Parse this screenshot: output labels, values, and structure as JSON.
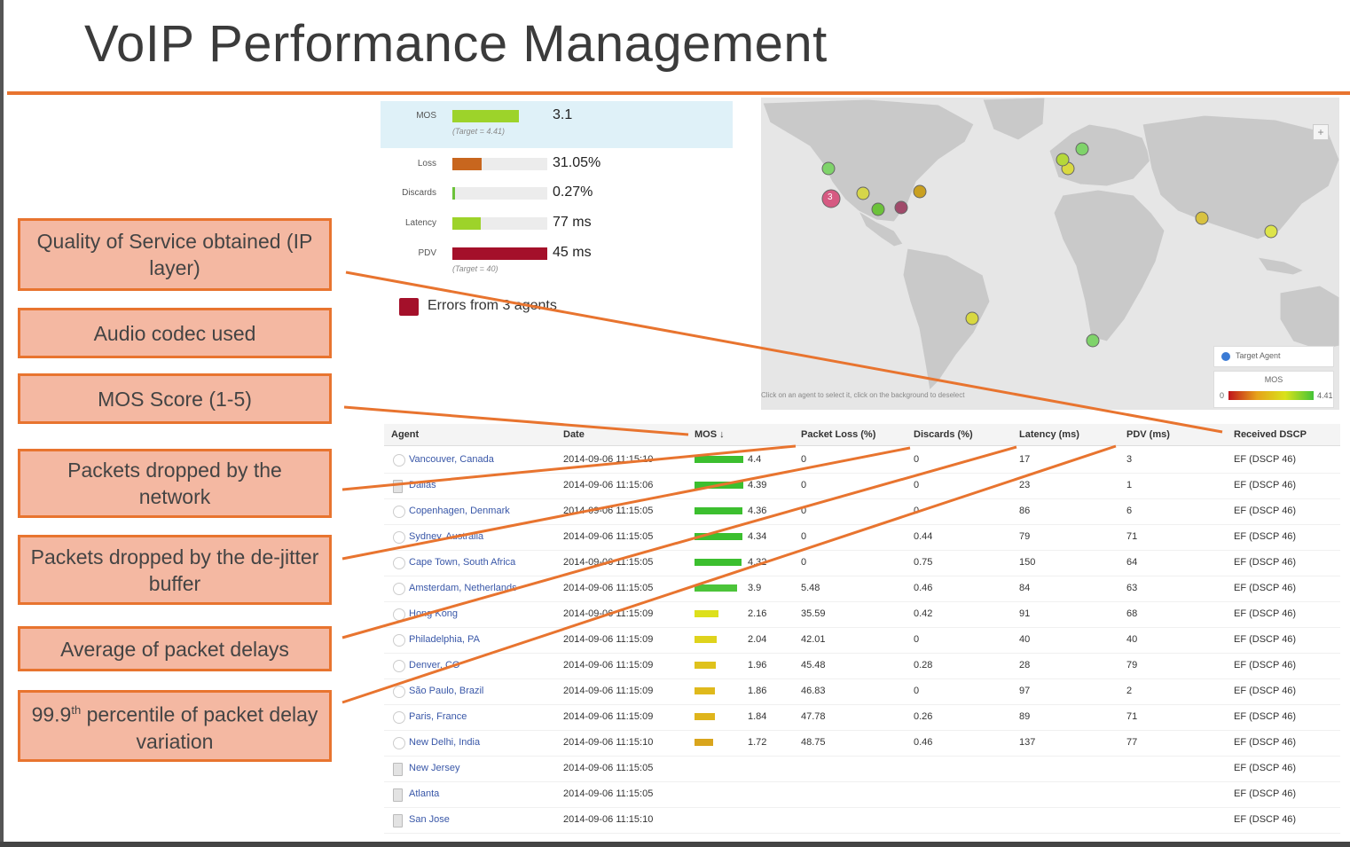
{
  "title": "VoIP Performance Management",
  "metrics": {
    "mos": {
      "label": "MOS",
      "value": "3.1",
      "target": "(Target = 4.41)",
      "fill": 0.7,
      "color": "#9dd32a"
    },
    "loss": {
      "label": "Loss",
      "value": "31.05%",
      "fill": 0.31,
      "color": "#c8661e"
    },
    "discards": {
      "label": "Discards",
      "value": "0.27%",
      "fill": 0.03,
      "color": "#6cc23a"
    },
    "latency": {
      "label": "Latency",
      "value": "77 ms",
      "fill": 0.3,
      "color": "#9dd32a"
    },
    "pdv": {
      "label": "PDV",
      "value": "45 ms",
      "target": "(Target = 40)",
      "fill": 1.0,
      "color": "#a4102a"
    },
    "errors": "Errors from 3 agents"
  },
  "map": {
    "hint": "Click on an agent to select it, click on the background to deselect",
    "legend_target": "Target Agent",
    "legend_mos": "MOS",
    "legend_min": "0",
    "legend_max": "4.41",
    "cluster_count": "3",
    "zoom_in": "+"
  },
  "annotations": [
    {
      "text": "Quality of Service obtained (IP layer)"
    },
    {
      "text": "Audio codec used"
    },
    {
      "text": "MOS Score (1-5)"
    },
    {
      "text": "Packets dropped by the network"
    },
    {
      "text": "Packets dropped by the de-jitter buffer"
    },
    {
      "text": "Average of packet delays"
    },
    {
      "text_pre": "99.9",
      "text_sup": "th",
      "text_post": " percentile of packet delay variation"
    }
  ],
  "table": {
    "headers": {
      "agent": "Agent",
      "date": "Date",
      "mos": "MOS ↓",
      "loss": "Packet Loss (%)",
      "discards": "Discards (%)",
      "latency": "Latency (ms)",
      "pdv": "PDV (ms)",
      "dscp": "Received DSCP"
    },
    "rows": [
      {
        "agent": "Vancouver, Canada",
        "date": "2014-09-06 11:15:10",
        "mos": "4.4",
        "mos_frac": 1.0,
        "mos_color": "#3cbf2f",
        "loss": "0",
        "discards": "0",
        "latency": "17",
        "pdv": "3",
        "dscp": "EF (DSCP 46)",
        "icon": "circle"
      },
      {
        "agent": "Dallas",
        "date": "2014-09-06 11:15:06",
        "mos": "4.39",
        "mos_frac": 1.0,
        "mos_color": "#3cbf2f",
        "loss": "0",
        "discards": "0",
        "latency": "23",
        "pdv": "1",
        "dscp": "EF (DSCP 46)",
        "icon": "server"
      },
      {
        "agent": "Copenhagen, Denmark",
        "date": "2014-09-06 11:15:05",
        "mos": "4.36",
        "mos_frac": 0.99,
        "mos_color": "#3cbf2f",
        "loss": "0",
        "discards": "0",
        "latency": "86",
        "pdv": "6",
        "dscp": "EF (DSCP 46)",
        "icon": "circle"
      },
      {
        "agent": "Sydney, Australia",
        "date": "2014-09-06 11:15:05",
        "mos": "4.34",
        "mos_frac": 0.98,
        "mos_color": "#3cbf2f",
        "loss": "0",
        "discards": "0.44",
        "latency": "79",
        "pdv": "71",
        "dscp": "EF (DSCP 46)",
        "icon": "circle"
      },
      {
        "agent": "Cape Town, South Africa",
        "date": "2014-09-06 11:15:05",
        "mos": "4.32",
        "mos_frac": 0.97,
        "mos_color": "#3cbf2f",
        "loss": "0",
        "discards": "0.75",
        "latency": "150",
        "pdv": "64",
        "dscp": "EF (DSCP 46)",
        "icon": "circle"
      },
      {
        "agent": "Amsterdam, Netherlands",
        "date": "2014-09-06 11:15:05",
        "mos": "3.9",
        "mos_frac": 0.88,
        "mos_color": "#4cc43a",
        "loss": "5.48",
        "discards": "0.46",
        "latency": "84",
        "pdv": "63",
        "dscp": "EF (DSCP 46)",
        "icon": "circle"
      },
      {
        "agent": "Hong Kong",
        "date": "2014-09-06 11:15:09",
        "mos": "2.16",
        "mos_frac": 0.49,
        "mos_color": "#dde01c",
        "loss": "35.59",
        "discards": "0.42",
        "latency": "91",
        "pdv": "68",
        "dscp": "EF (DSCP 46)",
        "icon": "circle"
      },
      {
        "agent": "Philadelphia, PA",
        "date": "2014-09-06 11:15:09",
        "mos": "2.04",
        "mos_frac": 0.46,
        "mos_color": "#dfd31c",
        "loss": "42.01",
        "discards": "0",
        "latency": "40",
        "pdv": "40",
        "dscp": "EF (DSCP 46)",
        "icon": "circle"
      },
      {
        "agent": "Denver, CO",
        "date": "2014-09-06 11:15:09",
        "mos": "1.96",
        "mos_frac": 0.44,
        "mos_color": "#dfc21c",
        "loss": "45.48",
        "discards": "0.28",
        "latency": "28",
        "pdv": "79",
        "dscp": "EF (DSCP 46)",
        "icon": "circle"
      },
      {
        "agent": "São Paulo, Brazil",
        "date": "2014-09-06 11:15:09",
        "mos": "1.86",
        "mos_frac": 0.42,
        "mos_color": "#dfb91c",
        "loss": "46.83",
        "discards": "0",
        "latency": "97",
        "pdv": "2",
        "dscp": "EF (DSCP 46)",
        "icon": "circle"
      },
      {
        "agent": "Paris, France",
        "date": "2014-09-06 11:15:09",
        "mos": "1.84",
        "mos_frac": 0.42,
        "mos_color": "#dfb51c",
        "loss": "47.78",
        "discards": "0.26",
        "latency": "89",
        "pdv": "71",
        "dscp": "EF (DSCP 46)",
        "icon": "circle"
      },
      {
        "agent": "New Delhi, India",
        "date": "2014-09-06 11:15:10",
        "mos": "1.72",
        "mos_frac": 0.39,
        "mos_color": "#d9a51c",
        "loss": "48.75",
        "discards": "0.46",
        "latency": "137",
        "pdv": "77",
        "dscp": "EF (DSCP 46)",
        "icon": "circle"
      },
      {
        "agent": "New Jersey",
        "date": "2014-09-06 11:15:05",
        "mos": "",
        "mos_frac": 0,
        "mos_color": "#eee",
        "loss": "",
        "discards": "",
        "latency": "",
        "pdv": "",
        "dscp": "EF (DSCP 46)",
        "icon": "server"
      },
      {
        "agent": "Atlanta",
        "date": "2014-09-06 11:15:05",
        "mos": "",
        "mos_frac": 0,
        "mos_color": "#eee",
        "loss": "",
        "discards": "",
        "latency": "",
        "pdv": "",
        "dscp": "EF (DSCP 46)",
        "icon": "server"
      },
      {
        "agent": "San Jose",
        "date": "2014-09-06 11:15:10",
        "mos": "",
        "mos_frac": 0,
        "mos_color": "#eee",
        "loss": "",
        "discards": "",
        "latency": "",
        "pdv": "",
        "dscp": "EF (DSCP 46)",
        "icon": "server"
      }
    ]
  }
}
